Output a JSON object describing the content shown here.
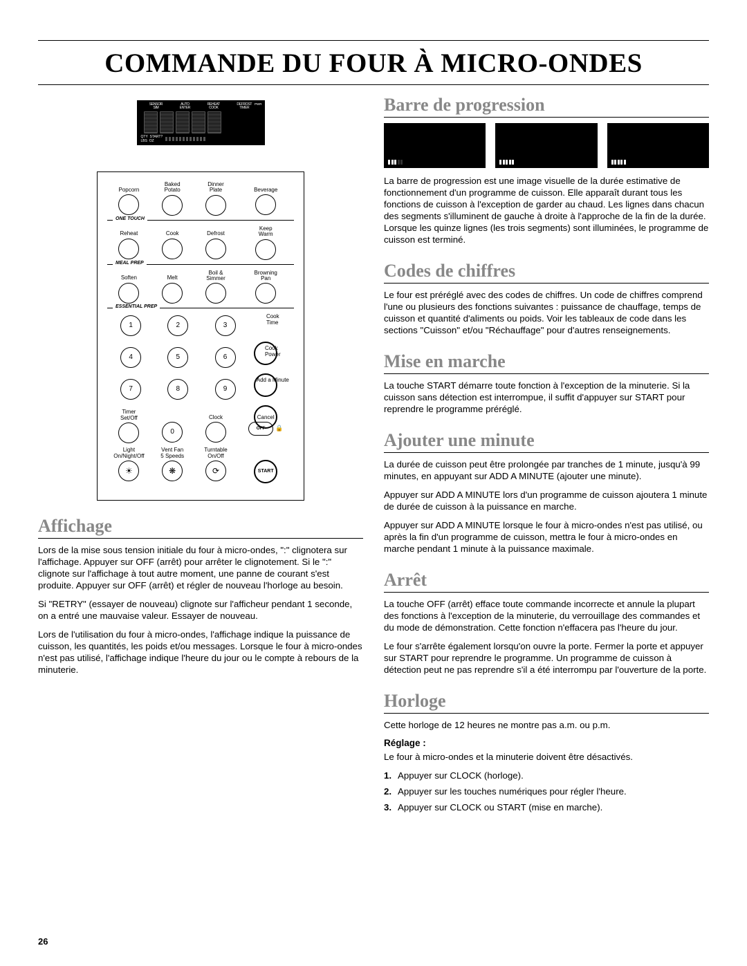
{
  "page_number": "26",
  "title": "COMMANDE DU FOUR À MICRO-ONDES",
  "panel": {
    "lcd_top": [
      "SENSOR\nSIM",
      "AUTO\nENTER",
      "REHEAT\nCOOK",
      "DEFROST\nTIMER"
    ],
    "lcd_side": "PWR",
    "lcd_bot_left": "QTY  START?\nLBS  OZ",
    "row1": [
      "Popcorn",
      "Baked\nPotato",
      "Dinner\nPlate",
      "Beverage"
    ],
    "div1": "ONE TOUCH",
    "row2": [
      "Reheat",
      "Cook",
      "Defrost",
      "Keep\nWarm"
    ],
    "div2": "MEAL PREP",
    "row3": [
      "Soften",
      "Melt",
      "Boil &\nSimmer",
      "Browning\nPan"
    ],
    "div3": "ESSENTIAL PREP",
    "side_cooktime": "Cook\nTime",
    "side_cookpower": "Cook\nPower",
    "side_addmin": "Add a Minute",
    "timer_label": "Timer\nSet/Off",
    "clock_label": "Clock",
    "cancel_label": "Cancel",
    "off_label": "OFF",
    "light": "Light\nOn/Night/Off",
    "vent": "Vent Fan\n5 Speeds",
    "turntable": "Turntable\nOn/Off",
    "start": "START"
  },
  "left": {
    "affichage_title": "Affichage",
    "aff_p1": "Lors de la mise sous tension initiale du four à micro-ondes, \":\" clignotera sur l'affichage. Appuyer sur OFF (arrêt) pour arrêter le clignotement. Si le \":\" clignote sur l'affichage à tout autre moment, une panne de courant s'est produite. Appuyer sur OFF (arrêt) et régler de nouveau l'horloge au besoin.",
    "aff_p2": "Si \"RETRY\" (essayer de nouveau) clignote sur l'afficheur pendant 1 seconde, on a entré une mauvaise valeur. Essayer de nouveau.",
    "aff_p3": "Lors de l'utilisation du four à micro-ondes, l'affichage indique la puissance de cuisson, les quantités, les poids et/ou messages. Lorsque le four à micro-ondes n'est pas utilisé, l'affichage indique l'heure du jour ou le compte à rebours de la minuterie."
  },
  "right": {
    "barre_title": "Barre de progression",
    "barre_p": "La barre de progression est une image visuelle de la durée estimative de fonctionnement d'un programme de cuisson. Elle apparaît durant tous les fonctions de cuisson à l'exception de garder au chaud. Les lignes dans chacun des segments s'illuminent de gauche à droite à l'approche de la fin de la durée. Lorsque les quinze lignes (les trois segments) sont illuminées, le programme de cuisson est terminé.",
    "codes_title": "Codes de chiffres",
    "codes_p": "Le four est préréglé avec des codes de chiffres. Un code de chiffres comprend l'une ou plusieurs des fonctions suivantes : puissance de chauffage, temps de cuisson et quantité d'aliments ou poids. Voir les tableaux de code dans les sections \"Cuisson\" et/ou \"Réchauffage\" pour d'autres renseignements.",
    "mise_title": "Mise en marche",
    "mise_p": "La touche START démarre toute fonction à l'exception de la minuterie. Si la cuisson sans détection est interrompue, il suffit d'appuyer sur START pour reprendre le programme préréglé.",
    "ajouter_title": "Ajouter une minute",
    "aj_p1": "La durée de cuisson peut être prolongée par tranches de 1 minute, jusqu'à 99 minutes, en appuyant sur ADD A MINUTE (ajouter une minute).",
    "aj_p2": "Appuyer sur ADD A MINUTE lors d'un programme de cuisson ajoutera 1 minute de durée de cuisson à la puissance en marche.",
    "aj_p3": "Appuyer sur ADD A MINUTE lorsque le four à micro-ondes n'est pas utilisé, ou après la fin d'un programme de cuisson, mettra le four à micro-ondes en marche pendant 1 minute à la puissance maximale.",
    "arret_title": "Arrêt",
    "ar_p1": "La touche OFF (arrêt) efface toute commande incorrecte et annule la plupart des fonctions à l'exception de la minuterie, du verrouillage des commandes et du mode de démonstration. Cette fonction n'effacera pas l'heure du jour.",
    "ar_p2": "Le four s'arrête également lorsqu'on ouvre la porte. Fermer la porte et appuyer sur START pour reprendre le programme. Un programme de cuisson à détection peut ne pas reprendre s'il a été interrompu par l'ouverture de la porte.",
    "horloge_title": "Horloge",
    "hor_p": "Cette horloge de 12 heures ne montre pas a.m. ou p.m.",
    "reglage_label": "Réglage :",
    "reglage_p": "Le four à micro-ondes et la minuterie doivent être désactivés.",
    "steps": [
      "Appuyer sur CLOCK (horloge).",
      "Appuyer sur les touches numériques pour régler l'heure.",
      "Appuyer sur CLOCK ou START (mise en marche)."
    ]
  },
  "progress_segments": [
    {
      "on": 3,
      "total": 5
    },
    {
      "on": 5,
      "total": 5
    },
    {
      "on": 5,
      "total": 5
    }
  ]
}
